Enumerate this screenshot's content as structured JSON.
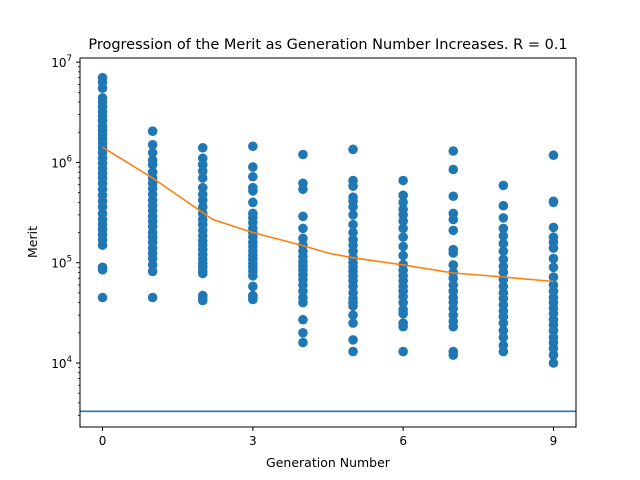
{
  "chart_data": {
    "type": "scatter",
    "title": "Progression of the Merit as Generation Number Increases. R = 0.1",
    "xlabel": "Generation Number",
    "ylabel": "Merit",
    "x_ticks": [
      {
        "value": 0,
        "label": "0"
      },
      {
        "value": 3,
        "label": "3"
      },
      {
        "value": 6,
        "label": "6"
      },
      {
        "value": 9,
        "label": "9"
      }
    ],
    "y_scale": "log",
    "y_ticks": [
      {
        "value": 10000,
        "base": "10",
        "exp": "4"
      },
      {
        "value": 100000,
        "base": "10",
        "exp": "5"
      },
      {
        "value": 1000000,
        "base": "10",
        "exp": "6"
      },
      {
        "value": 10000000,
        "base": "10",
        "exp": "7"
      }
    ],
    "xlim": [
      -0.45,
      9.45
    ],
    "ylim": [
      2300,
      11000000
    ],
    "grid": false,
    "colors": {
      "points": "#1f77b4",
      "mean_line": "#ff7f0e",
      "hline": "#1f77b4"
    },
    "scatter_series": [
      {
        "x": 0,
        "values": [
          7000000,
          6300000,
          5500000,
          4400000,
          4000000,
          3600000,
          3200000,
          2900000,
          2600000,
          2300000,
          2100000,
          1900000,
          1700000,
          1550000,
          1400000,
          1250000,
          1100000,
          980000,
          870000,
          780000,
          700000,
          620000,
          540000,
          470000,
          410000,
          360000,
          310000,
          270000,
          240000,
          215000,
          190000,
          170000,
          150000,
          90000,
          85000,
          45000
        ]
      },
      {
        "x": 1,
        "values": [
          2050000,
          1500000,
          1250000,
          1050000,
          950000,
          800000,
          700000,
          620000,
          550000,
          480000,
          420000,
          370000,
          330000,
          290000,
          260000,
          230000,
          200000,
          180000,
          160000,
          140000,
          125000,
          110000,
          95000,
          82000,
          45000
        ]
      },
      {
        "x": 2,
        "values": [
          1400000,
          1100000,
          950000,
          820000,
          700000,
          560000,
          480000,
          420000,
          360000,
          310000,
          270000,
          240000,
          210000,
          185000,
          165000,
          150000,
          135000,
          120000,
          108000,
          98000,
          90000,
          82000,
          78000,
          47000,
          44000,
          42000
        ]
      },
      {
        "x": 3,
        "values": [
          1450000,
          900000,
          720000,
          560000,
          520000,
          400000,
          310000,
          280000,
          250000,
          220000,
          200000,
          180000,
          160000,
          145000,
          130000,
          118000,
          108000,
          98000,
          90000,
          82000,
          74000,
          58000,
          47000,
          45000,
          43000
        ]
      },
      {
        "x": 4,
        "values": [
          1200000,
          620000,
          540000,
          290000,
          220000,
          175000,
          150000,
          130000,
          115000,
          102000,
          92000,
          84000,
          76000,
          68000,
          60000,
          52000,
          45000,
          40000,
          27000,
          20000,
          16000
        ]
      },
      {
        "x": 5,
        "values": [
          1350000,
          660000,
          580000,
          450000,
          410000,
          360000,
          300000,
          240000,
          200000,
          170000,
          150000,
          130000,
          112000,
          100000,
          90000,
          82000,
          74000,
          66000,
          58000,
          50000,
          44000,
          40000,
          37000,
          30000,
          25000,
          17000,
          13000
        ]
      },
      {
        "x": 6,
        "values": [
          660000,
          470000,
          400000,
          340000,
          300000,
          260000,
          220000,
          180000,
          145000,
          118000,
          96000,
          84000,
          74000,
          66000,
          58000,
          52000,
          46000,
          40000,
          34000,
          31000,
          25000,
          23000,
          13000
        ]
      },
      {
        "x": 7,
        "values": [
          1300000,
          850000,
          460000,
          310000,
          270000,
          210000,
          135000,
          125000,
          95000,
          80000,
          70000,
          60000,
          52000,
          45000,
          40000,
          35000,
          30000,
          26000,
          23000,
          13000,
          12000
        ]
      },
      {
        "x": 8,
        "values": [
          590000,
          370000,
          280000,
          220000,
          185000,
          155000,
          130000,
          108000,
          92000,
          80000,
          68000,
          58000,
          50000,
          44000,
          38000,
          33000,
          29000,
          25000,
          21000,
          18000,
          15000,
          13000
        ]
      },
      {
        "x": 9,
        "values": [
          1180000,
          410000,
          400000,
          225000,
          180000,
          160000,
          140000,
          110000,
          90000,
          72000,
          60000,
          52000,
          45000,
          40000,
          35000,
          31000,
          27000,
          24000,
          21000,
          18000,
          16000,
          14000,
          12000,
          10000
        ]
      }
    ],
    "line_series": {
      "x": [
        0,
        1,
        2.2,
        3,
        4,
        4.5,
        5,
        6,
        7,
        8,
        9
      ],
      "y": [
        1420000,
        700000,
        270000,
        200000,
        148000,
        125000,
        112000,
        95000,
        79000,
        72000,
        65000
      ]
    },
    "hline": 3300
  }
}
